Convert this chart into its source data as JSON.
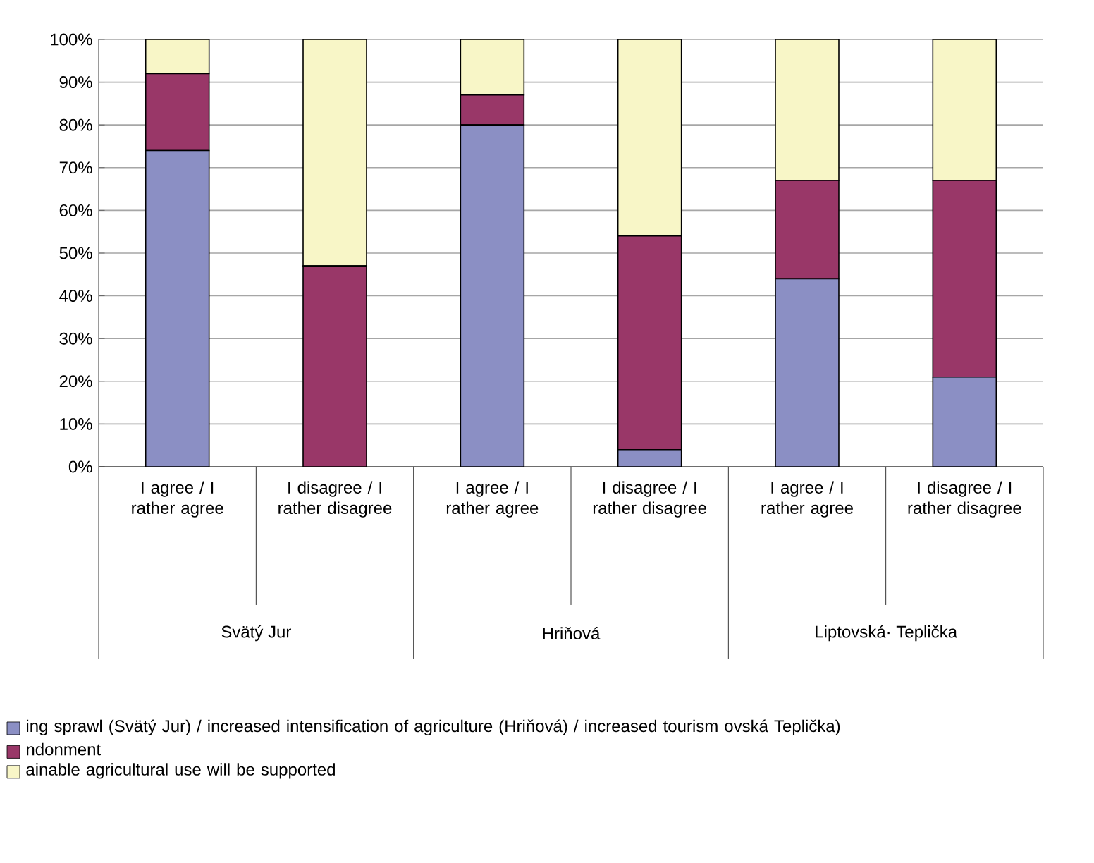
{
  "chart_data": {
    "type": "bar",
    "stacked": true,
    "categories": [
      "I agree / I rather agree",
      "I disagree / I rather disagree",
      "I agree / I rather agree",
      "I disagree / I rather disagree",
      "I agree / I rather agree",
      "I disagree / I rather disagree"
    ],
    "series": [
      {
        "name": "ing sprawl (Svätý Jur) / increased intensification of agriculture (Hriňová) / increased tourism ovská Teplička)",
        "color": "#8b8fc4",
        "values": [
          74,
          0,
          80,
          4,
          44,
          21
        ]
      },
      {
        "name": "ndonment",
        "color": "#993768",
        "values": [
          18,
          47,
          7,
          50,
          23,
          46
        ]
      },
      {
        "name": "ainable agricultural use will be supported",
        "color": "#f8f6c7",
        "values": [
          8,
          53,
          13,
          46,
          33,
          33
        ]
      }
    ],
    "ylim": [
      0,
      100
    ],
    "yticks": [
      {
        "value": 0,
        "label": "0%"
      },
      {
        "value": 10,
        "label": "10%"
      },
      {
        "value": 20,
        "label": "20%"
      },
      {
        "value": 30,
        "label": "30%"
      },
      {
        "value": 40,
        "label": "40%"
      },
      {
        "value": 50,
        "label": "50%"
      },
      {
        "value": 60,
        "label": "60%"
      },
      {
        "value": 70,
        "label": "70%"
      },
      {
        "value": 80,
        "label": "80%"
      },
      {
        "value": 90,
        "label": "90%"
      },
      {
        "value": 100,
        "label": "100%"
      }
    ],
    "grid": "y",
    "legend": "bottom",
    "annotations": [
      "Svätý Jur",
      "Hriňová",
      "Liptovská· Teplička"
    ]
  }
}
